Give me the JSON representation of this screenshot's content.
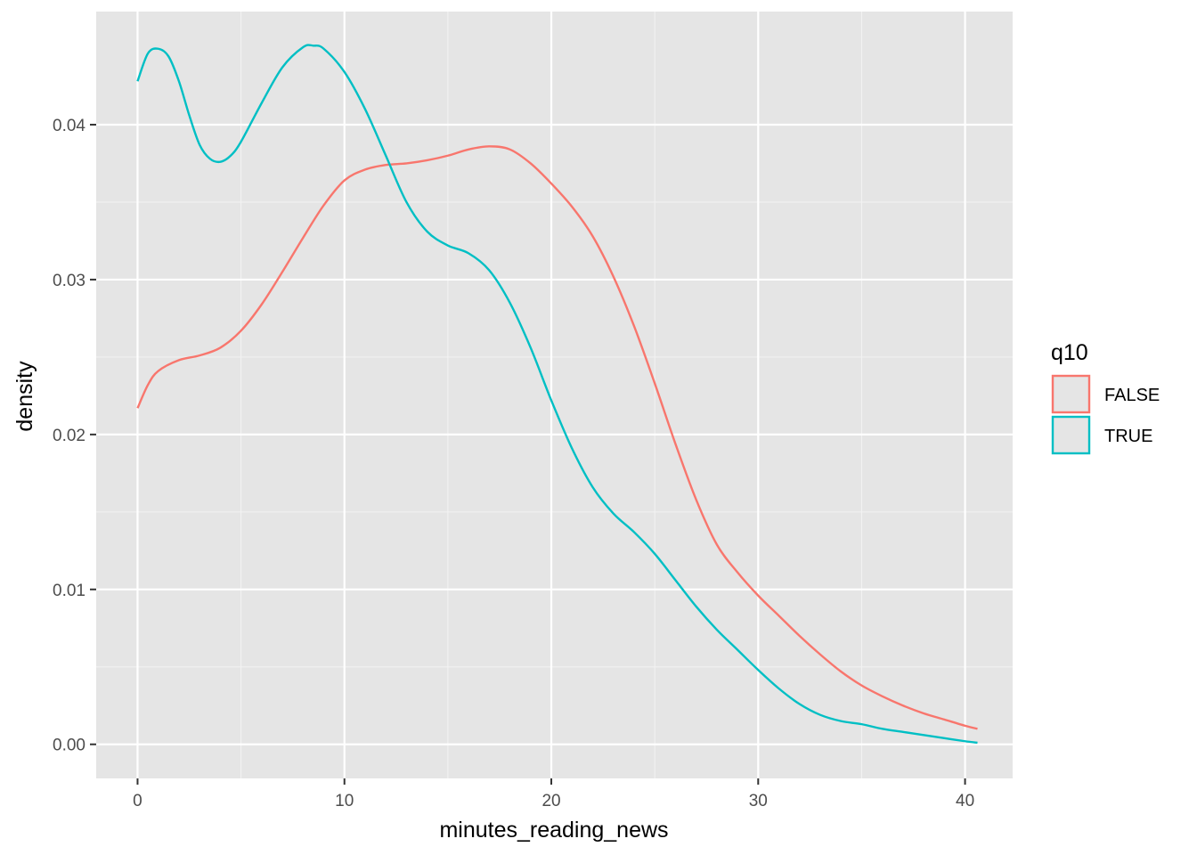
{
  "chart_data": {
    "type": "line",
    "title": "",
    "xlabel": "minutes_reading_news",
    "ylabel": "density",
    "xlim": [
      -2,
      42.3
    ],
    "ylim": [
      -0.0022,
      0.0473
    ],
    "x_ticks": [
      0,
      10,
      20,
      30,
      40
    ],
    "y_ticks": [
      0.0,
      0.01,
      0.02,
      0.03,
      0.04
    ],
    "x_tick_labels": [
      "0",
      "10",
      "20",
      "30",
      "40"
    ],
    "y_tick_labels": [
      "0.00",
      "0.01",
      "0.02",
      "0.03",
      "0.04"
    ],
    "grid": true,
    "legend": {
      "title": "q10",
      "position": "right"
    },
    "series": [
      {
        "name": "FALSE",
        "color": "#F8766D",
        "x": [
          0,
          0.5,
          1,
          2,
          3,
          4,
          5,
          6,
          7,
          8,
          9,
          10,
          11,
          12,
          13,
          14,
          15,
          16,
          17,
          18,
          19,
          20,
          21,
          22,
          23,
          24,
          25,
          26,
          27,
          28,
          29,
          30,
          31,
          32,
          33,
          34,
          35,
          36,
          37,
          38,
          39,
          40,
          40.6
        ],
        "y": [
          0.0217,
          0.0232,
          0.0241,
          0.0248,
          0.0251,
          0.0256,
          0.0267,
          0.0284,
          0.0305,
          0.0327,
          0.0348,
          0.0364,
          0.0371,
          0.0374,
          0.0375,
          0.0377,
          0.038,
          0.0384,
          0.0386,
          0.0384,
          0.0375,
          0.0362,
          0.0347,
          0.0328,
          0.0302,
          0.027,
          0.0233,
          0.0194,
          0.0158,
          0.0129,
          0.0111,
          0.0096,
          0.0083,
          0.007,
          0.0058,
          0.0047,
          0.0038,
          0.0031,
          0.0025,
          0.002,
          0.0016,
          0.0012,
          0.001
        ]
      },
      {
        "name": "TRUE",
        "color": "#00BFC4",
        "x": [
          0,
          0.5,
          1,
          1.5,
          2,
          2.5,
          3,
          3.5,
          4,
          4.5,
          5,
          6,
          7,
          8,
          8.5,
          9,
          10,
          11,
          12,
          13,
          14,
          15,
          16,
          17,
          18,
          19,
          20,
          21,
          22,
          23,
          24,
          25,
          26,
          27,
          28,
          29,
          30,
          31,
          32,
          33,
          34,
          35,
          36,
          37,
          38,
          39,
          40,
          40.6
        ],
        "y": [
          0.0428,
          0.0446,
          0.0449,
          0.0444,
          0.0428,
          0.0406,
          0.0387,
          0.0378,
          0.0376,
          0.038,
          0.0389,
          0.0414,
          0.0437,
          0.045,
          0.0451,
          0.0449,
          0.0434,
          0.041,
          0.038,
          0.035,
          0.0331,
          0.0322,
          0.0317,
          0.0306,
          0.0285,
          0.0256,
          0.0222,
          0.0191,
          0.0166,
          0.0149,
          0.0137,
          0.0123,
          0.0106,
          0.0089,
          0.0074,
          0.0061,
          0.0048,
          0.0036,
          0.0026,
          0.0019,
          0.0015,
          0.0013,
          0.001,
          0.0008,
          0.0006,
          0.0004,
          0.0002,
          0.0001
        ]
      }
    ]
  },
  "colors": {
    "panel_background": "#E5E5E5",
    "grid_major": "#FFFFFF",
    "grid_minor": "#F2F2F2",
    "tick_mark": "#333333",
    "tick_text": "#4D4D4D"
  }
}
